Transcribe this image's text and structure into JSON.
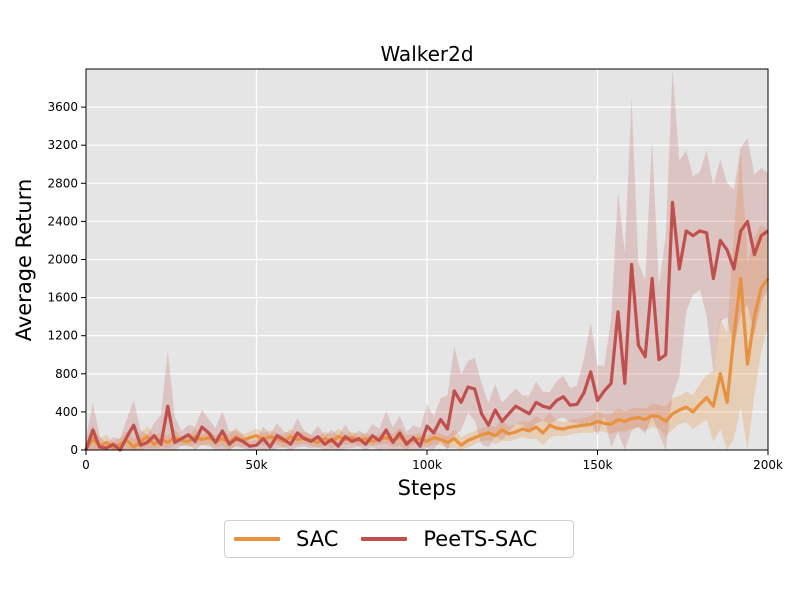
{
  "chart_data": {
    "type": "line",
    "title": "Walker2d",
    "xlabel": "Steps",
    "ylabel": "Average Return",
    "xlim": [
      0,
      200000
    ],
    "ylim": [
      0,
      4000
    ],
    "x_ticks": [
      {
        "value": 0,
        "label": "0"
      },
      {
        "value": 50000,
        "label": "50k"
      },
      {
        "value": 100000,
        "label": "100k"
      },
      {
        "value": 150000,
        "label": "150k"
      },
      {
        "value": 200000,
        "label": "200k"
      }
    ],
    "y_ticks": [
      {
        "value": 0,
        "label": "0"
      },
      {
        "value": 400,
        "label": "400"
      },
      {
        "value": 800,
        "label": "800"
      },
      {
        "value": 1200,
        "label": "1200"
      },
      {
        "value": 1600,
        "label": "1600"
      },
      {
        "value": 2000,
        "label": "2000"
      },
      {
        "value": 2400,
        "label": "2400"
      },
      {
        "value": 2800,
        "label": "2800"
      },
      {
        "value": 3200,
        "label": "3200"
      },
      {
        "value": 3600,
        "label": "3600"
      }
    ],
    "grid": true,
    "legend_position": "bottom-center",
    "background": "#e5e5e5",
    "series": [
      {
        "name": "SAC",
        "color": "#e8913e",
        "x": [
          0,
          2000,
          4000,
          6000,
          8000,
          10000,
          12000,
          14000,
          16000,
          18000,
          20000,
          22000,
          24000,
          26000,
          28000,
          30000,
          32000,
          34000,
          36000,
          38000,
          40000,
          42000,
          44000,
          46000,
          48000,
          50000,
          52000,
          54000,
          56000,
          58000,
          60000,
          62000,
          64000,
          66000,
          68000,
          70000,
          72000,
          74000,
          76000,
          78000,
          80000,
          82000,
          84000,
          86000,
          88000,
          90000,
          92000,
          94000,
          96000,
          98000,
          100000,
          102000,
          104000,
          106000,
          108000,
          110000,
          112000,
          114000,
          116000,
          118000,
          120000,
          122000,
          124000,
          126000,
          128000,
          130000,
          132000,
          134000,
          136000,
          138000,
          140000,
          142000,
          144000,
          146000,
          148000,
          150000,
          152000,
          154000,
          156000,
          158000,
          160000,
          162000,
          164000,
          166000,
          168000,
          170000,
          172000,
          174000,
          176000,
          178000,
          180000,
          182000,
          184000,
          186000,
          188000,
          190000,
          192000,
          194000,
          196000,
          198000,
          200000
        ],
        "y": [
          10,
          120,
          40,
          80,
          20,
          60,
          100,
          30,
          90,
          140,
          60,
          110,
          80,
          130,
          100,
          90,
          140,
          110,
          130,
          90,
          120,
          80,
          140,
          100,
          130,
          150,
          110,
          140,
          120,
          90,
          140,
          110,
          130,
          100,
          80,
          120,
          90,
          140,
          110,
          130,
          100,
          120,
          90,
          110,
          130,
          100,
          140,
          80,
          110,
          120,
          90,
          130,
          110,
          80,
          120,
          50,
          100,
          130,
          160,
          180,
          150,
          210,
          170,
          190,
          220,
          200,
          240,
          180,
          260,
          230,
          220,
          240,
          250,
          260,
          270,
          300,
          280,
          270,
          320,
          300,
          330,
          340,
          320,
          360,
          350,
          300,
          380,
          420,
          450,
          400,
          480,
          550,
          460,
          800,
          500,
          1200,
          1800,
          900,
          1400,
          1700,
          1800
        ]
      },
      {
        "name": "PeeTS-SAC",
        "color": "#c0504d",
        "x": [
          0,
          2000,
          4000,
          6000,
          8000,
          10000,
          12000,
          14000,
          16000,
          18000,
          20000,
          22000,
          24000,
          26000,
          28000,
          30000,
          32000,
          34000,
          36000,
          38000,
          40000,
          42000,
          44000,
          46000,
          48000,
          50000,
          52000,
          54000,
          56000,
          58000,
          60000,
          62000,
          64000,
          66000,
          68000,
          70000,
          72000,
          74000,
          76000,
          78000,
          80000,
          82000,
          84000,
          86000,
          88000,
          90000,
          92000,
          94000,
          96000,
          98000,
          100000,
          102000,
          104000,
          106000,
          108000,
          110000,
          112000,
          114000,
          116000,
          118000,
          120000,
          122000,
          124000,
          126000,
          128000,
          130000,
          132000,
          134000,
          136000,
          138000,
          140000,
          142000,
          144000,
          146000,
          148000,
          150000,
          152000,
          154000,
          156000,
          158000,
          160000,
          162000,
          164000,
          166000,
          168000,
          170000,
          172000,
          174000,
          176000,
          178000,
          180000,
          182000,
          184000,
          186000,
          188000,
          190000,
          192000,
          194000,
          196000,
          198000,
          200000
        ],
        "y": [
          0,
          210,
          30,
          20,
          60,
          0,
          140,
          260,
          50,
          80,
          150,
          60,
          460,
          80,
          120,
          160,
          90,
          240,
          180,
          80,
          200,
          60,
          120,
          90,
          40,
          50,
          120,
          30,
          150,
          110,
          60,
          180,
          120,
          90,
          140,
          60,
          110,
          40,
          140,
          90,
          120,
          60,
          150,
          100,
          210,
          80,
          180,
          60,
          130,
          40,
          250,
          180,
          320,
          220,
          620,
          500,
          660,
          640,
          380,
          260,
          420,
          300,
          380,
          460,
          420,
          380,
          500,
          460,
          440,
          520,
          560,
          470,
          480,
          600,
          820,
          520,
          620,
          700,
          1450,
          700,
          1950,
          1100,
          980,
          1800,
          950,
          1000,
          2600,
          1900,
          2300,
          2250,
          2300,
          2280,
          1800,
          2200,
          2100,
          1900,
          2300,
          2400,
          2050,
          2250,
          2300
        ]
      }
    ]
  }
}
